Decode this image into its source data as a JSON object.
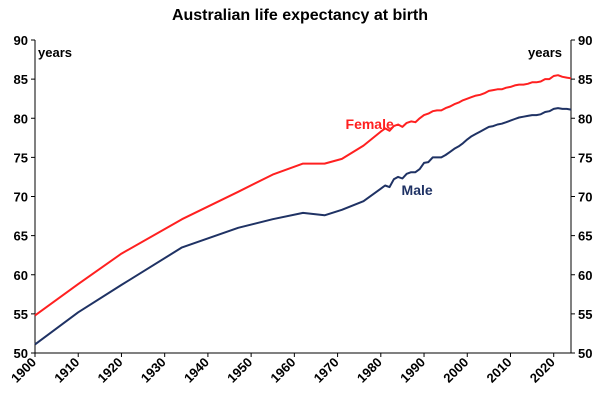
{
  "chart_data": {
    "type": "line",
    "title": "Australian life expectancy at birth",
    "ylabel_left": "years",
    "ylabel_right": "years",
    "xlim": [
      1900,
      2024
    ],
    "ylim": [
      50,
      90
    ],
    "xticks": [
      "1900",
      "1910",
      "1920",
      "1930",
      "1940",
      "1950",
      "1960",
      "1970",
      "1980",
      "1990",
      "2000",
      "2010",
      "2020"
    ],
    "yticks": [
      "50",
      "55",
      "60",
      "65",
      "70",
      "75",
      "80",
      "85",
      "90"
    ],
    "grid": false,
    "series": [
      {
        "name": "Female",
        "color": "#ff2020",
        "x": [
          1900,
          1910,
          1920,
          1934,
          1947,
          1955,
          1962,
          1967,
          1971,
          1976,
          1980,
          1981,
          1982,
          1983,
          1984,
          1985,
          1986,
          1987,
          1988,
          1989,
          1990,
          1991,
          1992,
          1993,
          1994,
          1995,
          1996,
          1997,
          1998,
          1999,
          2000,
          2001,
          2002,
          2003,
          2004,
          2005,
          2006,
          2007,
          2008,
          2009,
          2010,
          2011,
          2012,
          2013,
          2014,
          2015,
          2016,
          2017,
          2018,
          2019,
          2020,
          2021,
          2022,
          2023,
          2024
        ],
        "y": [
          54.8,
          58.8,
          62.7,
          67.1,
          70.6,
          72.8,
          74.2,
          74.2,
          74.8,
          76.5,
          78.3,
          78.7,
          78.4,
          79.0,
          79.2,
          78.9,
          79.4,
          79.6,
          79.5,
          80.0,
          80.4,
          80.6,
          80.9,
          81.0,
          81.0,
          81.3,
          81.5,
          81.8,
          82.0,
          82.3,
          82.5,
          82.7,
          82.9,
          83.0,
          83.2,
          83.5,
          83.6,
          83.7,
          83.7,
          83.9,
          84.0,
          84.2,
          84.3,
          84.3,
          84.4,
          84.6,
          84.6,
          84.7,
          85.0,
          85.0,
          85.4,
          85.5,
          85.3,
          85.2,
          85.1
        ]
      },
      {
        "name": "Male",
        "color": "#1f3264",
        "x": [
          1900,
          1910,
          1920,
          1934,
          1947,
          1955,
          1962,
          1967,
          1971,
          1976,
          1980,
          1981,
          1982,
          1983,
          1984,
          1985,
          1986,
          1987,
          1988,
          1989,
          1990,
          1991,
          1992,
          1993,
          1994,
          1995,
          1996,
          1997,
          1998,
          1999,
          2000,
          2001,
          2002,
          2003,
          2004,
          2005,
          2006,
          2007,
          2008,
          2009,
          2010,
          2011,
          2012,
          2013,
          2014,
          2015,
          2016,
          2017,
          2018,
          2019,
          2020,
          2021,
          2022,
          2023,
          2024
        ],
        "y": [
          51.1,
          55.2,
          58.7,
          63.5,
          66.0,
          67.1,
          67.9,
          67.6,
          68.3,
          69.4,
          71.0,
          71.4,
          71.2,
          72.2,
          72.5,
          72.3,
          72.9,
          73.1,
          73.1,
          73.5,
          74.3,
          74.4,
          75.0,
          75.0,
          75.0,
          75.3,
          75.7,
          76.1,
          76.4,
          76.8,
          77.3,
          77.7,
          78.0,
          78.3,
          78.6,
          78.9,
          79.0,
          79.2,
          79.3,
          79.5,
          79.7,
          79.9,
          80.1,
          80.2,
          80.3,
          80.4,
          80.4,
          80.5,
          80.8,
          80.9,
          81.2,
          81.3,
          81.2,
          81.2,
          81.1
        ]
      }
    ]
  }
}
